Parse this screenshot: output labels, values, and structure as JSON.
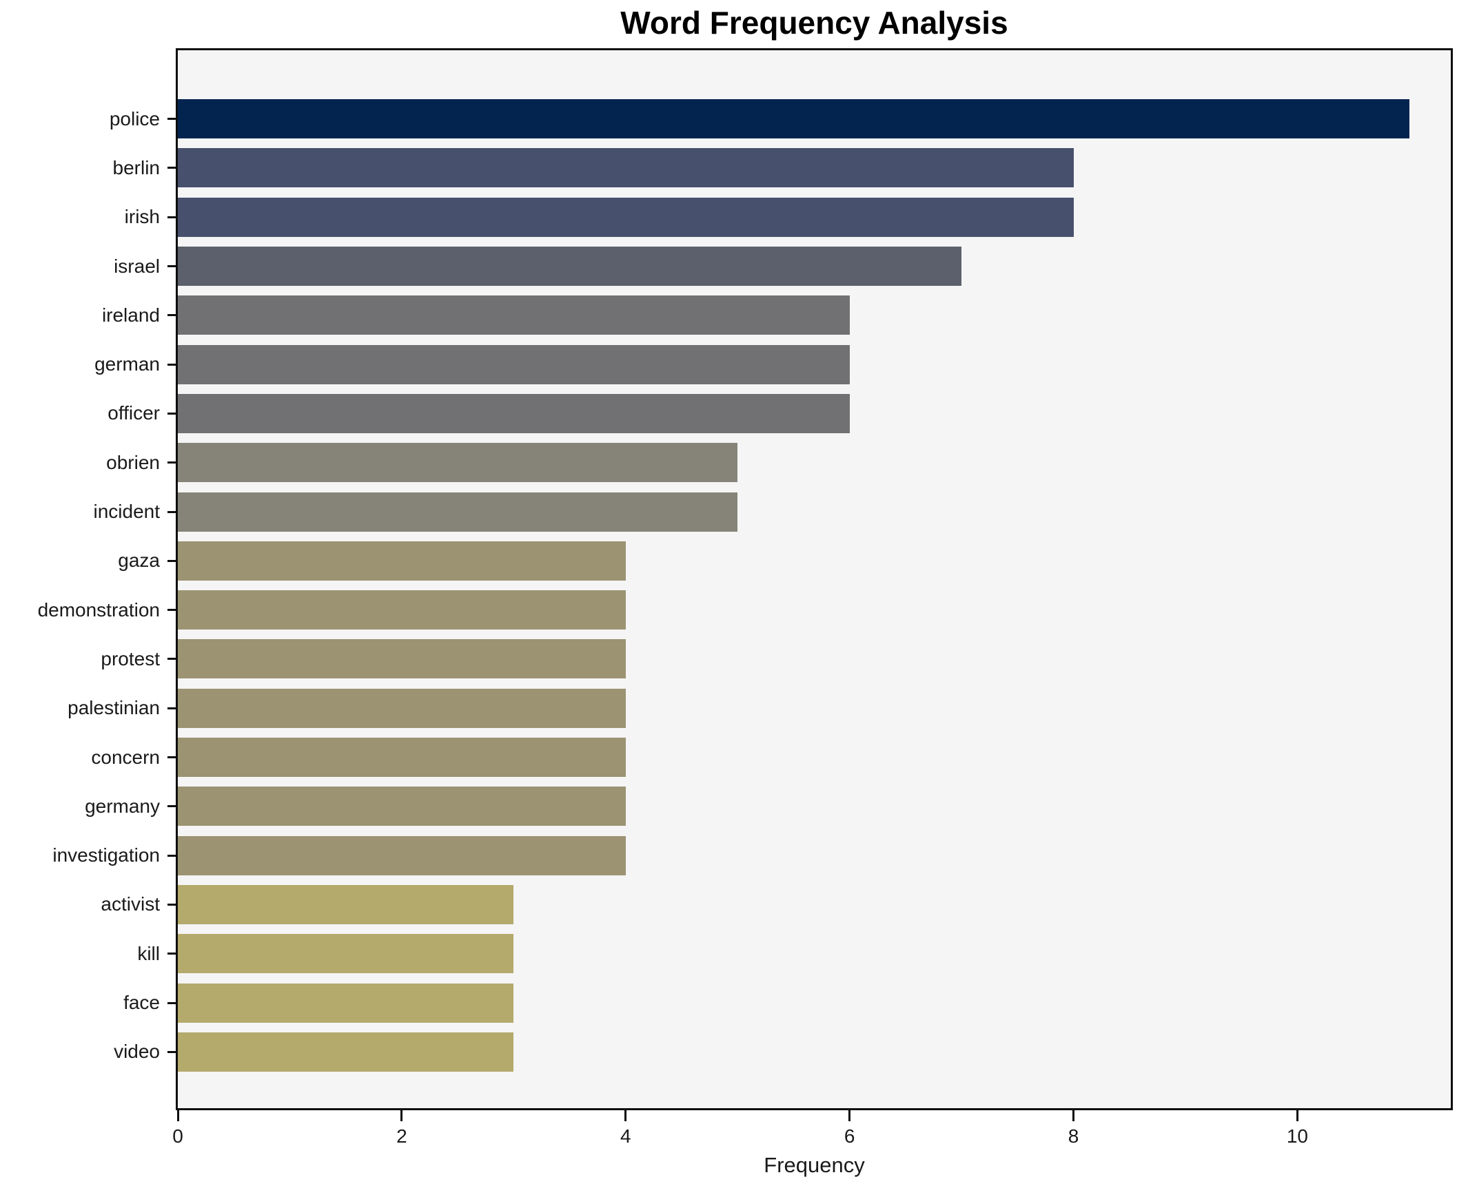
{
  "title": "Word Frequency Analysis",
  "chart_data": {
    "type": "bar",
    "orientation": "horizontal",
    "title": "Word Frequency Analysis",
    "xlabel": "Frequency",
    "ylabel": "",
    "categories": [
      "police",
      "berlin",
      "irish",
      "israel",
      "ireland",
      "german",
      "officer",
      "obrien",
      "incident",
      "gaza",
      "demonstration",
      "protest",
      "palestinian",
      "concern",
      "germany",
      "investigation",
      "activist",
      "kill",
      "face",
      "video"
    ],
    "values": [
      11,
      8,
      8,
      7,
      6,
      6,
      6,
      5,
      5,
      4,
      4,
      4,
      4,
      4,
      4,
      4,
      3,
      3,
      3,
      3
    ],
    "bar_colors": [
      "#02244f",
      "#47506c",
      "#47506c",
      "#5b606c",
      "#717173",
      "#717173",
      "#717173",
      "#868478",
      "#868478",
      "#9c9372",
      "#9c9372",
      "#9c9372",
      "#9c9372",
      "#9c9372",
      "#9c9372",
      "#9c9372",
      "#b3aa6c",
      "#b3aa6c",
      "#b3aa6c",
      "#b3aa6c"
    ],
    "xlim": [
      0,
      11.37
    ],
    "xticks": [
      "0",
      "2",
      "4",
      "6",
      "8",
      "10"
    ],
    "xtick_values": [
      0,
      2,
      4,
      6,
      8,
      10
    ],
    "grid": false,
    "legend": "none",
    "plot_background": "#f5f5f6",
    "figure_background": "#ffffff",
    "bar_label_color": "#1a1a1a"
  }
}
